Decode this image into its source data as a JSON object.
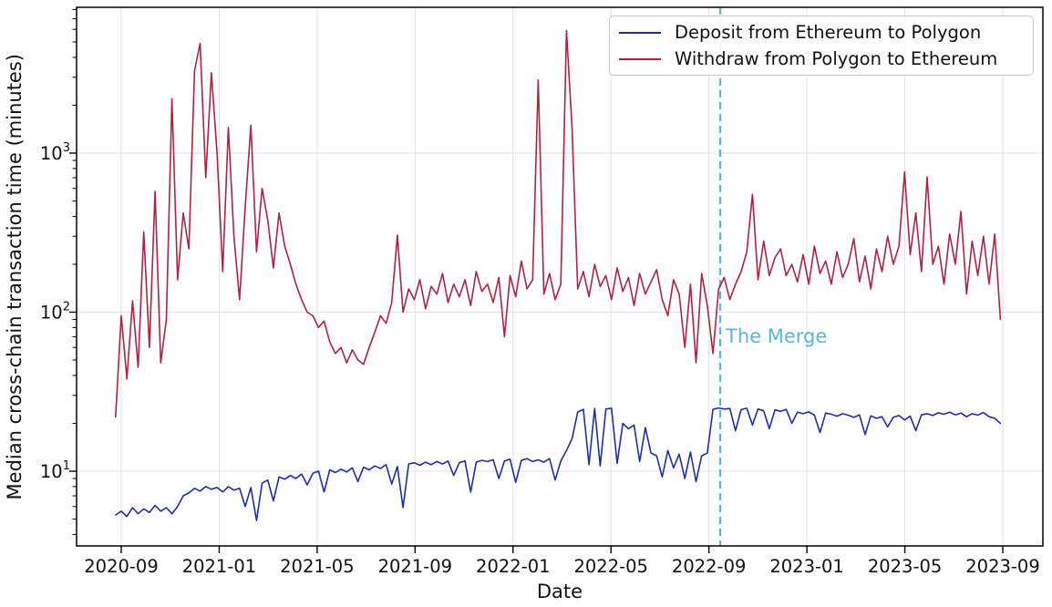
{
  "chart_data": {
    "type": "line",
    "title": "",
    "xlabel": "Date",
    "ylabel": "Median cross-chain transaction time (minutes)",
    "y_scale": "log",
    "grid": true,
    "legend_position": "upper right",
    "x_axis_epoch": "2020-09-01",
    "x_ticks": [
      "2020-09",
      "2021-01",
      "2021-05",
      "2021-09",
      "2022-01",
      "2022-05",
      "2022-09",
      "2023-01",
      "2023-05",
      "2023-09"
    ],
    "y_ticks": [
      {
        "base": "10",
        "exp": "1",
        "value": 10
      },
      {
        "base": "10",
        "exp": "2",
        "value": 100
      },
      {
        "base": "10",
        "exp": "3",
        "value": 1000
      }
    ],
    "ylim": [
      3.4,
      8300
    ],
    "annotation": {
      "label": "The Merge",
      "day": 744,
      "color": "#57b7da",
      "line_style": "dashed"
    },
    "series": [
      {
        "name": "Deposit from Ethereum to Polygon",
        "color": "#1c2db3",
        "start_day": -7,
        "step_days": 7,
        "values": [
          5.3,
          5.6,
          5.2,
          5.9,
          5.4,
          5.8,
          5.5,
          6.1,
          5.6,
          5.9,
          5.4,
          6.0,
          7.0,
          7.3,
          7.8,
          7.5,
          8.0,
          7.7,
          7.9,
          7.4,
          8.0,
          7.6,
          7.8,
          6.0,
          7.9,
          4.9,
          8.4,
          8.8,
          6.5,
          9.2,
          8.9,
          9.4,
          9.0,
          9.6,
          8.2,
          9.7,
          10.0,
          7.4,
          10.2,
          9.8,
          10.3,
          9.9,
          10.5,
          8.6,
          10.6,
          10.2,
          10.8,
          10.4,
          11.0,
          8.3,
          10.7,
          5.9,
          11.1,
          11.3,
          10.9,
          11.4,
          11.0,
          11.5,
          11.1,
          11.6,
          9.4,
          11.3,
          11.6,
          7.4,
          11.4,
          11.7,
          11.5,
          11.8,
          9.0,
          11.6,
          11.9,
          8.5,
          11.7,
          12.0,
          11.5,
          11.8,
          11.4,
          12.0,
          8.8,
          11.6,
          13.5,
          16.0,
          23.5,
          24.5,
          11.0,
          24.8,
          10.8,
          24.6,
          24.9,
          11.2,
          20.0,
          18.5,
          19.5,
          11.5,
          18.8,
          13.0,
          12.5,
          9.2,
          13.5,
          10.5,
          12.8,
          9.0,
          13.2,
          8.6,
          12.5,
          13.0,
          24.5,
          25.0,
          24.6,
          24.8,
          18.0,
          24.4,
          24.9,
          19.5,
          24.6,
          24.0,
          18.5,
          24.3,
          23.8,
          24.5,
          20.0,
          23.5,
          23.0,
          23.6,
          22.5,
          17.5,
          23.2,
          22.8,
          22.2,
          23.0,
          22.5,
          21.8,
          22.6,
          17.0,
          22.3,
          21.5,
          22.0,
          19.0,
          21.8,
          22.4,
          21.0,
          22.2,
          18.0,
          22.6,
          23.0,
          22.4,
          23.3,
          22.8,
          23.5,
          22.6,
          23.2,
          22.0,
          23.0,
          22.5,
          23.4,
          22.0,
          21.5,
          20.0
        ]
      },
      {
        "name": "Withdraw from Polygon to Ethereum",
        "color": "#b22240",
        "start_day": -7,
        "step_days": 7,
        "values": [
          22,
          95,
          38,
          118,
          45,
          320,
          60,
          575,
          48,
          90,
          2200,
          160,
          420,
          250,
          3300,
          4900,
          700,
          3200,
          1000,
          180,
          1450,
          300,
          120,
          460,
          1500,
          240,
          600,
          380,
          190,
          420,
          260,
          200,
          150,
          120,
          100,
          95,
          80,
          88,
          65,
          55,
          60,
          48,
          58,
          50,
          47,
          60,
          75,
          95,
          85,
          115,
          305,
          100,
          140,
          120,
          160,
          105,
          145,
          130,
          175,
          115,
          150,
          125,
          160,
          110,
          180,
          135,
          150,
          115,
          165,
          70,
          170,
          125,
          210,
          140,
          160,
          2880,
          130,
          175,
          120,
          150,
          5900,
          1450,
          140,
          180,
          125,
          200,
          145,
          170,
          120,
          190,
          135,
          165,
          110,
          175,
          130,
          155,
          185,
          120,
          95,
          160,
          130,
          60,
          150,
          48,
          175,
          110,
          55,
          140,
          165,
          120,
          150,
          180,
          240,
          550,
          160,
          280,
          170,
          220,
          250,
          170,
          200,
          155,
          230,
          150,
          260,
          175,
          210,
          150,
          240,
          165,
          200,
          290,
          155,
          225,
          140,
          250,
          180,
          300,
          200,
          260,
          760,
          230,
          420,
          180,
          710,
          200,
          260,
          150,
          310,
          200,
          430,
          130,
          280,
          170,
          300,
          150,
          310,
          90
        ]
      }
    ]
  }
}
